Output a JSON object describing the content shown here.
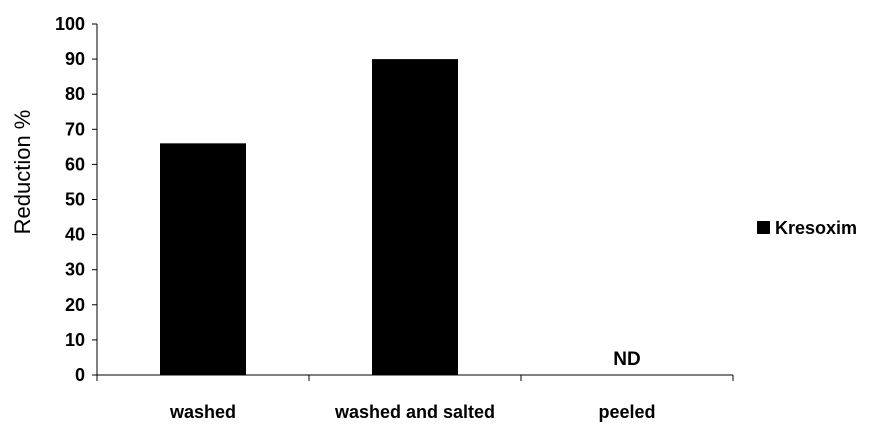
{
  "chart_data": {
    "type": "bar",
    "categories": [
      "washed",
      "washed and salted",
      "peeled"
    ],
    "series": [
      {
        "name": "Kresoxim",
        "values": [
          66,
          90,
          null
        ],
        "color": "#000000"
      }
    ],
    "title": "",
    "xlabel": "",
    "ylabel": "Reduction %",
    "ylim": [
      0,
      100
    ],
    "yticks": [
      0,
      10,
      20,
      30,
      40,
      50,
      60,
      70,
      80,
      90,
      100
    ],
    "grid": false,
    "legend_position": "right",
    "annotations": [
      {
        "category": "peeled",
        "text": "ND"
      }
    ]
  }
}
